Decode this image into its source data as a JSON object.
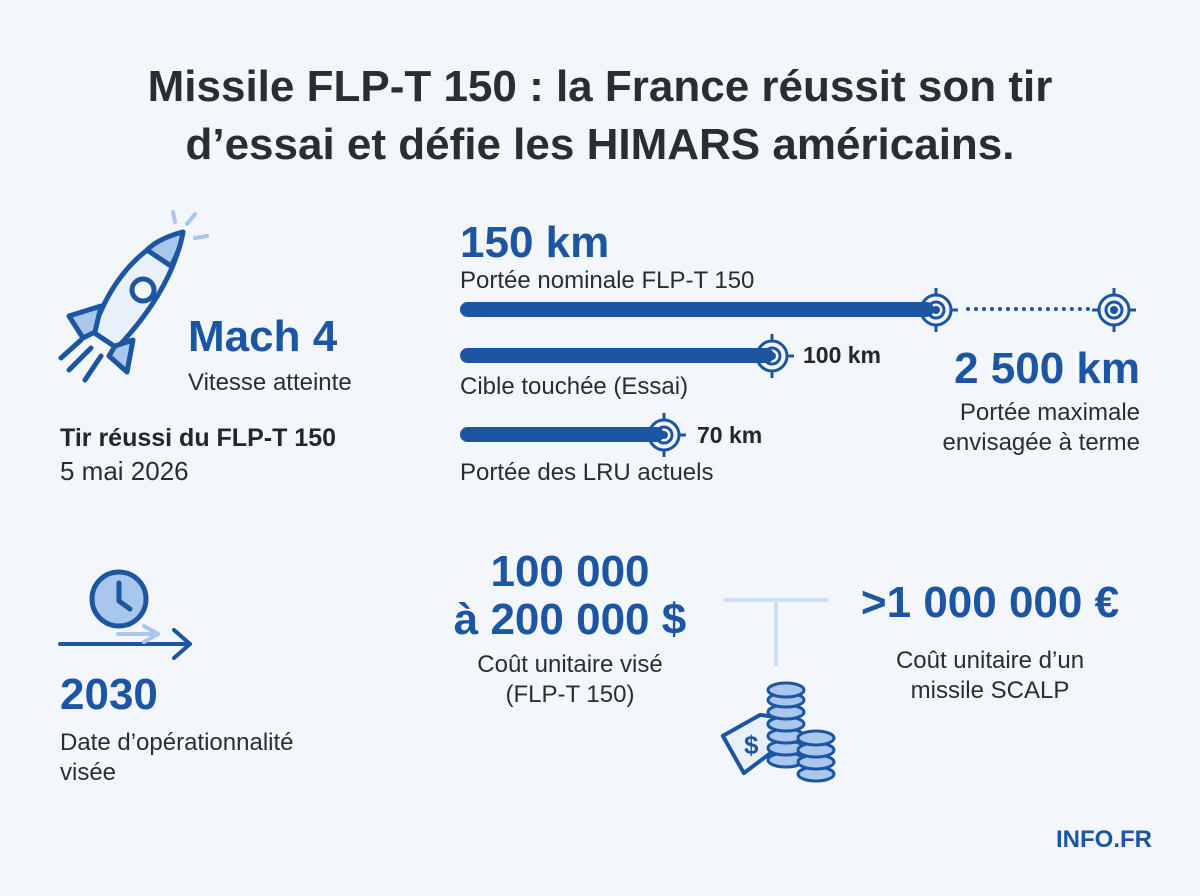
{
  "title": {
    "line1": "Missile FLP-T 150 : la France réussit son tir",
    "line2": "d’essai et défie les HIMARS américains."
  },
  "speed": {
    "value": "Mach 4",
    "label": "Vitesse atteinte"
  },
  "test": {
    "heading": "Tir réussi du FLP-T 150",
    "date": "5 mai 2026"
  },
  "range": {
    "nominal": {
      "value": "150 km",
      "label": "Portée nominale FLP-T 150"
    },
    "test_target": {
      "value": "100 km",
      "label": "Cible touchée (Essai)"
    },
    "current_lru": {
      "value": "70 km",
      "label": "Portée des LRU actuels"
    },
    "max": {
      "value": "2 500 km",
      "label_line1": "Portée maximale",
      "label_line2": "envisagée à terme"
    }
  },
  "operational": {
    "year": "2030",
    "label_line1": "Date d’opérationnalité",
    "label_line2": "visée"
  },
  "cost_flpt": {
    "value_line1": "100 000",
    "value_line2": "à 200 000 $",
    "label_line1": "Coût unitaire visé",
    "label_line2": "(FLP-T 150)"
  },
  "cost_scalp": {
    "value": ">1 000 000 €",
    "label_line1": "Coût unitaire d’un",
    "label_line2": "missile SCALP"
  },
  "brand": "INFO.FR",
  "colors": {
    "primary": "#1c56a3",
    "light": "#a9c6ec",
    "background": "#f3f6fa",
    "text": "#2a2d31"
  },
  "icons": [
    "rocket-icon",
    "target-icon",
    "clock-icon",
    "arrow-right-icon",
    "price-tag-icon",
    "coin-stack-icon"
  ]
}
